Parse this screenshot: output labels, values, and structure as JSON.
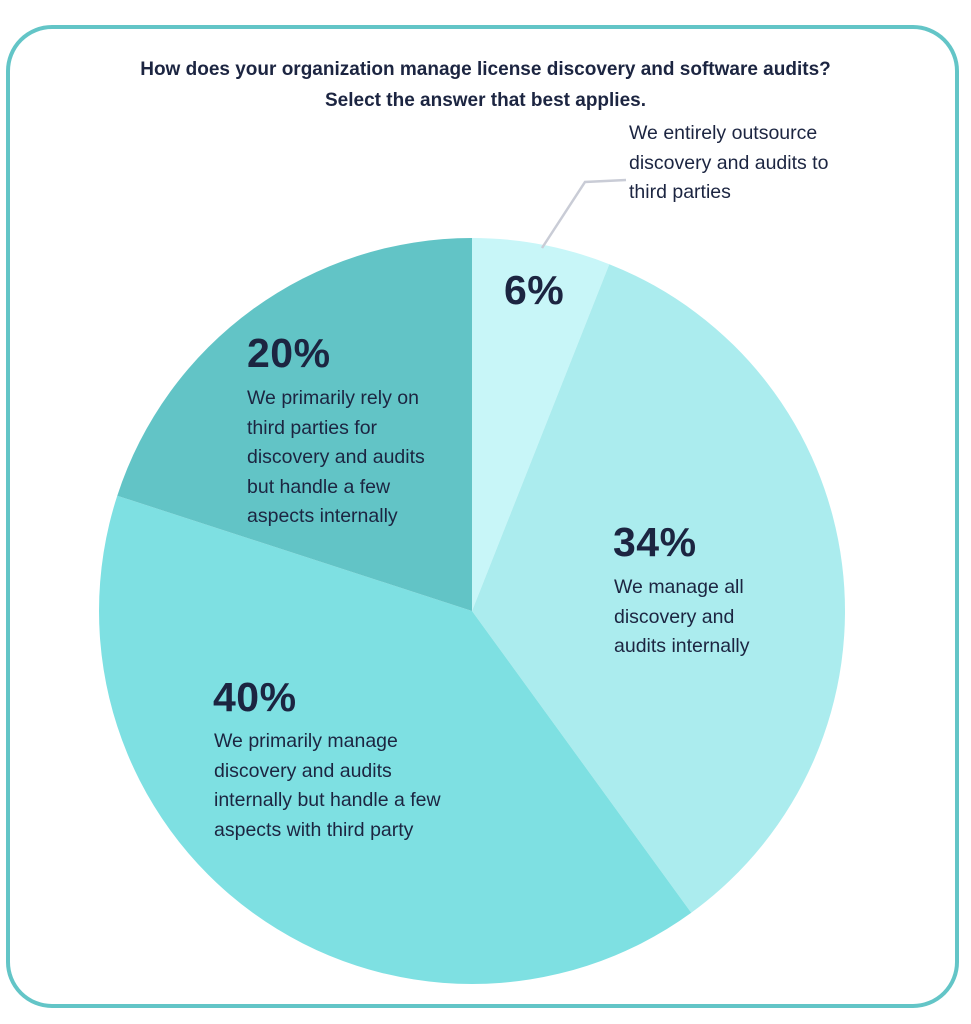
{
  "title": {
    "line1": "How does your organization manage license discovery and software audits?",
    "line2": "Select the answer that best applies."
  },
  "colors": {
    "frame": "#63c5c7",
    "text": "#1c2541",
    "leader_line": "#c9ccd6"
  },
  "slices": [
    {
      "id": "outsource",
      "pct_label": "6%",
      "value": 6,
      "color": "#c8f6f8",
      "desc": "We entirely outsource discovery and audits to third parties",
      "desc_lines": [
        "We entirely outsource",
        "discovery and audits to",
        "third parties"
      ]
    },
    {
      "id": "internal",
      "pct_label": "34%",
      "value": 34,
      "color": "#abecee",
      "desc": "We manage all discovery and audits internally",
      "desc_lines": [
        "We manage all",
        "discovery and",
        "audits internally"
      ]
    },
    {
      "id": "mostly-internal",
      "pct_label": "40%",
      "value": 40,
      "color": "#7ee0e2",
      "desc": "We primarily manage discovery and audits internally but handle a few aspects with third party",
      "desc_lines": [
        "We primarily manage",
        "discovery and audits",
        "internally but handle a few",
        "aspects with third party"
      ]
    },
    {
      "id": "mostly-third-party",
      "pct_label": "20%",
      "value": 20,
      "color": "#62c4c6",
      "desc": "We primarily rely on third parties for discovery and audits but handle a few aspects internally",
      "desc_lines": [
        "We primarily rely on",
        "third parties for",
        "discovery and audits",
        "but handle a few",
        "aspects internally"
      ]
    }
  ],
  "chart_data": {
    "type": "pie",
    "title": "How does your organization manage license discovery and software audits? Select the answer that best applies.",
    "categories": [
      "We entirely outsource discovery and audits to third parties",
      "We manage all discovery and audits internally",
      "We primarily manage discovery and audits internally but handle a few aspects with third party",
      "We primarily rely on third parties for discovery and audits but handle a few aspects internally"
    ],
    "values": [
      6,
      34,
      40,
      20
    ],
    "unit": "%",
    "colors": [
      "#c8f6f8",
      "#abecee",
      "#7ee0e2",
      "#62c4c6"
    ],
    "start_angle": "12 o'clock",
    "direction": "clockwise",
    "legend": "none (inline labels)",
    "annotations": [
      "Leader line from 6% slice to its label"
    ]
  }
}
